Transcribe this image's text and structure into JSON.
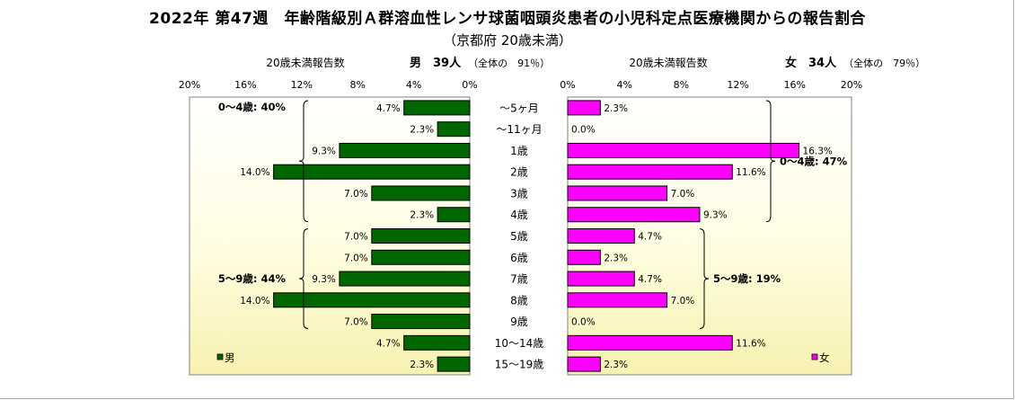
{
  "title": "2022年 第47週　年齢階級別Ａ群溶血性レンサ球菌咽頭炎患者の小児科定点医療機関からの報告割合",
  "subtitle": "（京都府 20歳未満）",
  "chart_data": {
    "type": "bar",
    "categories": [
      "～5ヶ月",
      "～11ヶ月",
      "1歳",
      "2歳",
      "3歳",
      "4歳",
      "5歳",
      "6歳",
      "7歳",
      "8歳",
      "9歳",
      "10～14歳",
      "15～19歳"
    ],
    "axis_label": "20歳未満報告数",
    "xlim": [
      0,
      20
    ],
    "ticks": [
      "0%",
      "4%",
      "8%",
      "12%",
      "16%",
      "20%"
    ],
    "tick_values": [
      0,
      4,
      8,
      12,
      16,
      20
    ],
    "series": [
      {
        "name": "男",
        "summary_prefix": "男　39人",
        "summary_suffix": "（全体の　91％）",
        "color": "#006600",
        "values": [
          4.7,
          2.3,
          9.3,
          14.0,
          7.0,
          2.3,
          7.0,
          7.0,
          9.3,
          14.0,
          7.0,
          4.7,
          2.3
        ],
        "labels": [
          "4.7%",
          "2.3%",
          "9.3%",
          "14.0%",
          "7.0%",
          "2.3%",
          "7.0%",
          "7.0%",
          "9.3%",
          "14.0%",
          "7.0%",
          "4.7%",
          "2.3%"
        ],
        "legend": "男",
        "groups": [
          {
            "text": "0～4歳: 40%",
            "from": 0,
            "to": 5
          },
          {
            "text": "5～9歳: 44%",
            "from": 6,
            "to": 10
          }
        ]
      },
      {
        "name": "女",
        "summary_prefix": "女　34人",
        "summary_suffix": "（全体の　79％）",
        "color": "#ff00ff",
        "values": [
          2.3,
          0.0,
          16.3,
          11.6,
          7.0,
          9.3,
          4.7,
          2.3,
          4.7,
          7.0,
          0.0,
          11.6,
          2.3
        ],
        "labels": [
          "2.3%",
          "0.0%",
          "16.3%",
          "11.6%",
          "7.0%",
          "9.3%",
          "4.7%",
          "2.3%",
          "4.7%",
          "7.0%",
          "0.0%",
          "11.6%",
          "2.3%"
        ],
        "legend": "女",
        "groups": [
          {
            "text": "0～4歳: 47%",
            "from": 0,
            "to": 5
          },
          {
            "text": "5～9歳: 19%",
            "from": 6,
            "to": 10
          }
        ]
      }
    ],
    "grid": false,
    "legend_position": "bottom"
  }
}
